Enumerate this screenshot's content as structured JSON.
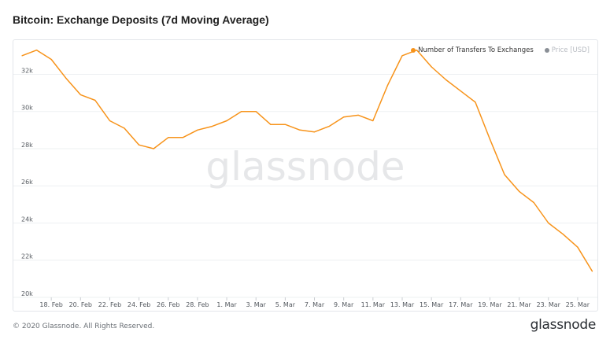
{
  "title": "Bitcoin: Exchange Deposits (7d Moving Average)",
  "legend": [
    {
      "label": "Number of Transfers To Exchanges",
      "color": "#f7931a",
      "active": true
    },
    {
      "label": "Price [USD]",
      "color": "#8a8f96",
      "active": false
    }
  ],
  "watermark": "glassnode",
  "footer": {
    "copyright": "© 2020 Glassnode. All Rights Reserved.",
    "logo": "glassnode"
  },
  "colors": {
    "line": "#f7931a",
    "grid": "#eef0f2",
    "watermark": "#e6e7e9"
  },
  "chart_data": {
    "type": "line",
    "title": "Bitcoin: Exchange Deposits (7d Moving Average)",
    "xlabel": "",
    "ylabel": "",
    "ylim": [
      20000,
      33500
    ],
    "yticks": [
      20000,
      22000,
      24000,
      26000,
      28000,
      30000,
      32000
    ],
    "ytick_labels": [
      "20k",
      "22k",
      "24k",
      "26k",
      "28k",
      "30k",
      "32k"
    ],
    "xtick_labels": [
      "18. Feb",
      "20. Feb",
      "22. Feb",
      "24. Feb",
      "26. Feb",
      "28. Feb",
      "1. Mar",
      "3. Mar",
      "5. Mar",
      "7. Mar",
      "9. Mar",
      "11. Mar",
      "13. Mar",
      "15. Mar",
      "17. Mar",
      "19. Mar",
      "21. Mar",
      "23. Mar",
      "25. Mar"
    ],
    "grid": true,
    "legend_position": "top-right",
    "series": [
      {
        "name": "Number of Transfers To Exchanges",
        "color": "#f7931a",
        "x": [
          "16. Feb",
          "17. Feb",
          "18. Feb",
          "19. Feb",
          "20. Feb",
          "21. Feb",
          "22. Feb",
          "23. Feb",
          "24. Feb",
          "25. Feb",
          "26. Feb",
          "27. Feb",
          "28. Feb",
          "29. Feb",
          "1. Mar",
          "2. Mar",
          "3. Mar",
          "4. Mar",
          "5. Mar",
          "6. Mar",
          "7. Mar",
          "8. Mar",
          "9. Mar",
          "10. Mar",
          "11. Mar",
          "12. Mar",
          "13. Mar",
          "14. Mar",
          "15. Mar",
          "16. Mar",
          "17. Mar",
          "18. Mar",
          "19. Mar",
          "20. Mar",
          "21. Mar",
          "22. Mar",
          "23. Mar",
          "24. Mar",
          "25. Mar",
          "26. Mar"
        ],
        "values": [
          33000,
          33300,
          32800,
          31800,
          30900,
          30600,
          29500,
          29100,
          28200,
          28000,
          28600,
          28600,
          29000,
          29200,
          29500,
          30000,
          30000,
          29300,
          29300,
          29000,
          28900,
          29200,
          29700,
          29800,
          29500,
          31400,
          33000,
          33300,
          32400,
          31700,
          31100,
          30500,
          28500,
          26600,
          25700,
          25100,
          24000,
          23400,
          22700,
          21400
        ]
      }
    ]
  }
}
